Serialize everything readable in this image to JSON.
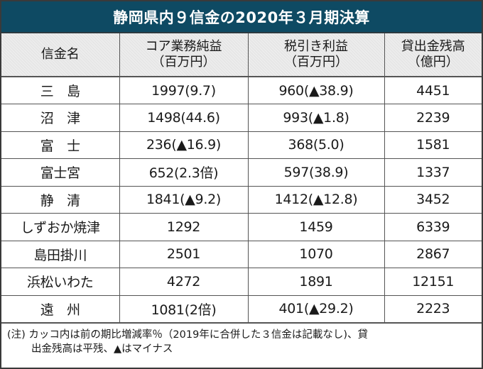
{
  "title": "静岡県内９信金の2020年３月期決算",
  "headers": [
    {
      "line1": "信金名",
      "line2": ""
    },
    {
      "line1": "コア業務純益",
      "line2": "（百万円）"
    },
    {
      "line1": "税引き利益",
      "line2": "（百万円）"
    },
    {
      "line1": "貸出金残高",
      "line2": "（億円）"
    }
  ],
  "rows": [
    {
      "name": "三　島",
      "core_profit": "1997(9.7)",
      "net_income": "960(▲38.9)",
      "loans": "4451"
    },
    {
      "name": "沼　津",
      "core_profit": "1498(44.6)",
      "net_income": "993(▲1.8)",
      "loans": "2239"
    },
    {
      "name": "富　士",
      "core_profit": "236(▲16.9)",
      "net_income": "368(5.0)",
      "loans": "1581"
    },
    {
      "name": "富士宮",
      "core_profit": "652(2.3倍)",
      "net_income": "597(38.9)",
      "loans": "1337"
    },
    {
      "name": "静　清",
      "core_profit": "1841(▲9.2)",
      "net_income": "1412(▲12.8)",
      "loans": "3452"
    },
    {
      "name": "しずおか焼津",
      "core_profit": "1292",
      "net_income": "1459",
      "loans": "6339"
    },
    {
      "name": "島田掛川",
      "core_profit": "2501",
      "net_income": "1070",
      "loans": "2867"
    },
    {
      "name": "浜松いわた",
      "core_profit": "4272",
      "net_income": "1891",
      "loans": "12151"
    },
    {
      "name": "遠　州",
      "core_profit": "1081(2倍)",
      "net_income": "401(▲29.2)",
      "loans": "2223"
    }
  ],
  "note": {
    "line1": "(注) カッコ内は前の期比増減率％（2019年に合併した３信金は記載なし)、貸",
    "line2": "出金残高は平残、▲はマイナス"
  },
  "colors": {
    "title_bg": "#0e4a63",
    "title_text": "#ffffff",
    "header_bg": "#e6e6e6",
    "border": "#555555"
  }
}
